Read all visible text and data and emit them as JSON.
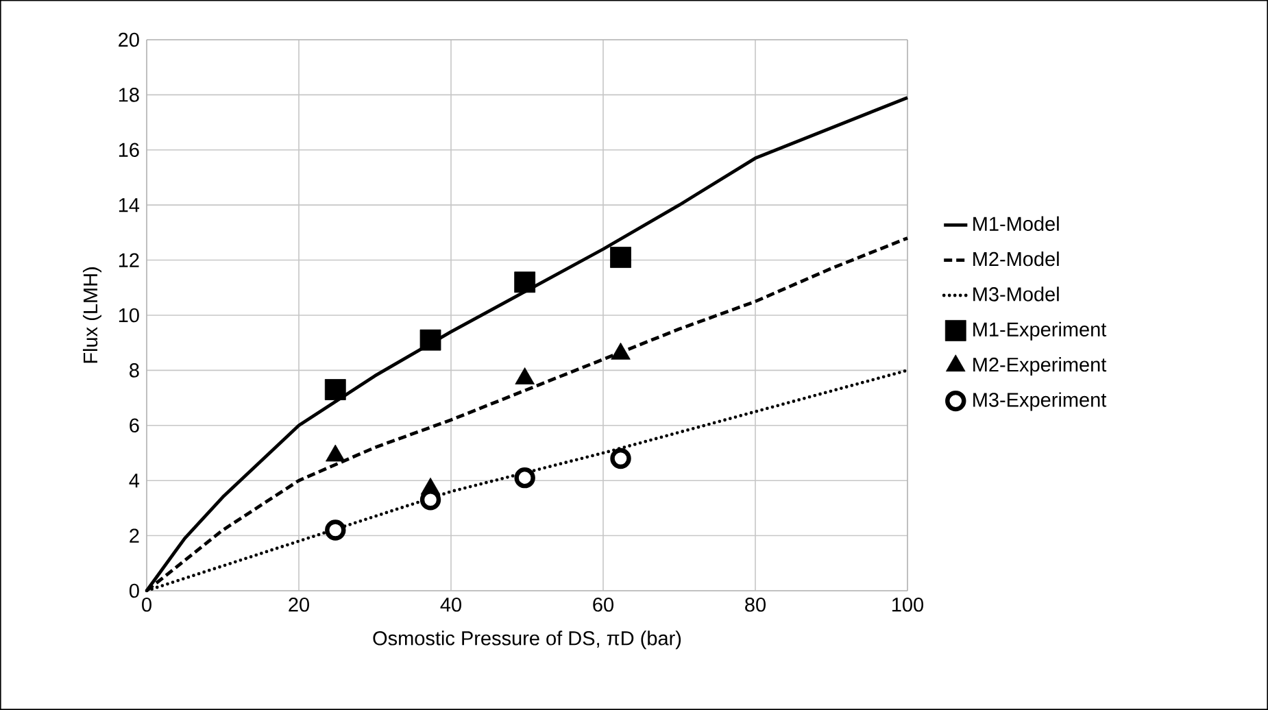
{
  "chart_data": {
    "type": "line",
    "xlabel": "Osmostic Pressure of DS, πD (bar)",
    "ylabel": "Flux (LMH)",
    "xlim": [
      0,
      100
    ],
    "ylim": [
      0,
      20
    ],
    "xticks": [
      0,
      20,
      40,
      60,
      80,
      100
    ],
    "yticks": [
      0,
      2,
      4,
      6,
      8,
      10,
      12,
      14,
      16,
      18,
      20
    ],
    "grid": true,
    "legend": "right",
    "series": [
      {
        "name": "M1-Model",
        "line_style": "solid",
        "color": "#000000",
        "x": [
          0,
          5,
          10,
          20,
          30,
          40,
          50,
          60,
          70,
          80,
          90,
          100
        ],
        "values": [
          0,
          1.9,
          3.4,
          6.0,
          7.8,
          9.4,
          10.9,
          12.4,
          14.0,
          15.7,
          16.8,
          17.9
        ]
      },
      {
        "name": "M2-Model",
        "line_style": "dashed",
        "color": "#000000",
        "x": [
          0,
          10,
          20,
          30,
          40,
          50,
          60,
          70,
          80,
          90,
          100
        ],
        "values": [
          0,
          2.2,
          4.0,
          5.2,
          6.2,
          7.3,
          8.4,
          9.5,
          10.5,
          11.7,
          12.8
        ]
      },
      {
        "name": "M3-Model",
        "line_style": "dotted",
        "color": "#000000",
        "x": [
          0,
          20,
          40,
          60,
          80,
          100
        ],
        "values": [
          0,
          1.8,
          3.6,
          5.0,
          6.5,
          8.0
        ]
      },
      {
        "name": "M1-Experiment",
        "type": "scatter",
        "marker": "square",
        "color": "#000000",
        "x": [
          24.8,
          37.3,
          49.7,
          62.3
        ],
        "values": [
          7.3,
          9.1,
          11.2,
          12.1
        ]
      },
      {
        "name": "M2-Experiment",
        "type": "scatter",
        "marker": "triangle",
        "color": "#000000",
        "x": [
          24.8,
          37.3,
          49.7,
          62.3
        ],
        "values": [
          4.9,
          3.7,
          7.7,
          8.6
        ]
      },
      {
        "name": "M3-Experiment",
        "type": "scatter",
        "marker": "circle",
        "color": "#000000",
        "x": [
          24.8,
          37.3,
          49.7,
          62.3
        ],
        "values": [
          2.2,
          3.3,
          4.1,
          4.8
        ]
      }
    ]
  }
}
